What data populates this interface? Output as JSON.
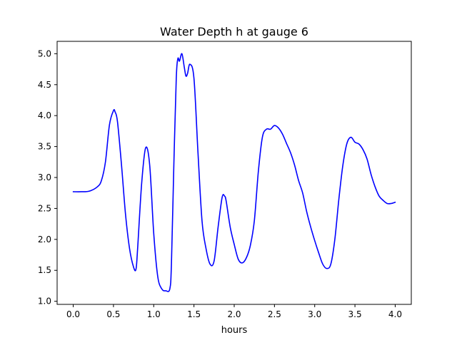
{
  "chart_data": {
    "type": "line",
    "title": "Water Depth h at gauge 6",
    "xlabel": "hours",
    "ylabel": "",
    "xlim": [
      -0.2,
      4.2
    ],
    "ylim": [
      0.95,
      5.2
    ],
    "x_ticks": [
      0.0,
      0.5,
      1.0,
      1.5,
      2.0,
      2.5,
      3.0,
      3.5,
      4.0
    ],
    "x_tick_labels": [
      "0.0",
      "0.5",
      "1.0",
      "1.5",
      "2.0",
      "2.5",
      "3.0",
      "3.5",
      "4.0"
    ],
    "y_ticks": [
      1.0,
      1.5,
      2.0,
      2.5,
      3.0,
      3.5,
      4.0,
      4.5,
      5.0
    ],
    "y_tick_labels": [
      "1.0",
      "1.5",
      "2.0",
      "2.5",
      "3.0",
      "3.5",
      "4.0",
      "4.5",
      "5.0"
    ],
    "grid": false,
    "legend": "none",
    "series": [
      {
        "color": "#0000ff",
        "x": [
          0.0,
          0.1,
          0.2,
          0.3,
          0.35,
          0.4,
          0.45,
          0.5,
          0.52,
          0.55,
          0.6,
          0.65,
          0.7,
          0.75,
          0.78,
          0.8,
          0.85,
          0.9,
          0.95,
          1.0,
          1.05,
          1.1,
          1.15,
          1.2,
          1.22,
          1.25,
          1.28,
          1.3,
          1.32,
          1.35,
          1.38,
          1.4,
          1.42,
          1.45,
          1.5,
          1.55,
          1.6,
          1.65,
          1.7,
          1.75,
          1.8,
          1.85,
          1.88,
          1.9,
          1.95,
          2.0,
          2.05,
          2.1,
          2.15,
          2.2,
          2.25,
          2.3,
          2.35,
          2.4,
          2.45,
          2.5,
          2.55,
          2.6,
          2.65,
          2.7,
          2.75,
          2.8,
          2.85,
          2.9,
          2.95,
          3.0,
          3.05,
          3.1,
          3.15,
          3.2,
          3.25,
          3.3,
          3.35,
          3.4,
          3.45,
          3.5,
          3.55,
          3.6,
          3.65,
          3.7,
          3.75,
          3.8,
          3.85,
          3.9,
          3.95,
          4.0
        ],
        "y": [
          2.77,
          2.77,
          2.78,
          2.85,
          2.95,
          3.25,
          3.85,
          4.08,
          4.06,
          3.9,
          3.2,
          2.4,
          1.85,
          1.55,
          1.52,
          1.85,
          2.9,
          3.48,
          3.2,
          2.1,
          1.4,
          1.2,
          1.17,
          1.2,
          1.6,
          3.2,
          4.6,
          4.92,
          4.88,
          5.0,
          4.78,
          4.64,
          4.68,
          4.83,
          4.6,
          3.4,
          2.3,
          1.85,
          1.6,
          1.65,
          2.2,
          2.68,
          2.7,
          2.62,
          2.2,
          1.92,
          1.68,
          1.62,
          1.7,
          1.9,
          2.3,
          3.1,
          3.65,
          3.78,
          3.78,
          3.84,
          3.8,
          3.7,
          3.55,
          3.4,
          3.2,
          2.95,
          2.75,
          2.45,
          2.2,
          1.98,
          1.78,
          1.6,
          1.53,
          1.6,
          2.0,
          2.65,
          3.2,
          3.55,
          3.65,
          3.57,
          3.54,
          3.45,
          3.3,
          3.05,
          2.85,
          2.7,
          2.63,
          2.58,
          2.58,
          2.6
        ]
      }
    ]
  }
}
